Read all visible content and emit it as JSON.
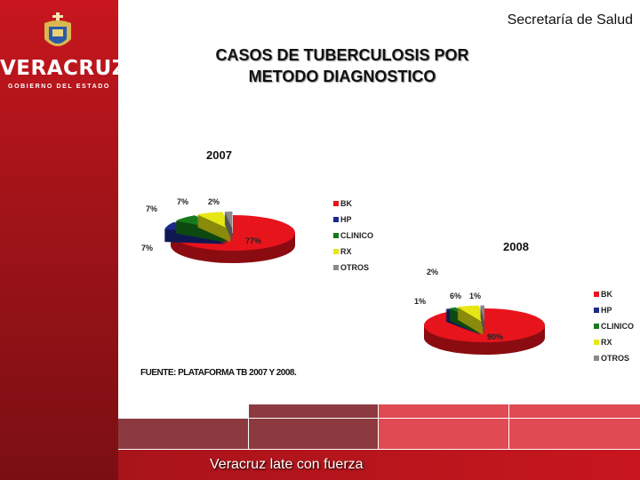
{
  "header": {
    "org": "Secretaría de Salud",
    "logo_text": "VERACRUZ",
    "logo_subtext": "GOBIERNO DEL ESTADO",
    "title_line1": "CASOS DE TUBERCULOSIS POR",
    "title_line2": "METODO DIAGNOSTICO"
  },
  "chart_data": [
    {
      "type": "pie",
      "title": "2007",
      "legend": "right",
      "categories": [
        "BK",
        "HP",
        "CLINICO",
        "RX",
        "OTROS"
      ],
      "values": [
        77,
        7,
        7,
        7,
        2
      ],
      "labels": [
        "77%",
        "7%",
        "7%",
        "7%",
        "2%"
      ],
      "colors": [
        "#e8141c",
        "#1c2a8a",
        "#167a1c",
        "#e6e614",
        "#8a8a8a"
      ]
    },
    {
      "type": "pie",
      "title": "2008",
      "legend": "right",
      "categories": [
        "BK",
        "HP",
        "CLINICO",
        "RX",
        "OTROS"
      ],
      "values": [
        90,
        1,
        2,
        6,
        1
      ],
      "labels": [
        "90%",
        "1%",
        "2%",
        "6%",
        "1%"
      ],
      "colors": [
        "#e8141c",
        "#1c2a8a",
        "#167a1c",
        "#e6e614",
        "#8a8a8a"
      ]
    }
  ],
  "source": "FUENTE: PLATAFORMA TB 2007 Y 2008.",
  "footer": {
    "slogan": "Veracruz late con fuerza"
  }
}
